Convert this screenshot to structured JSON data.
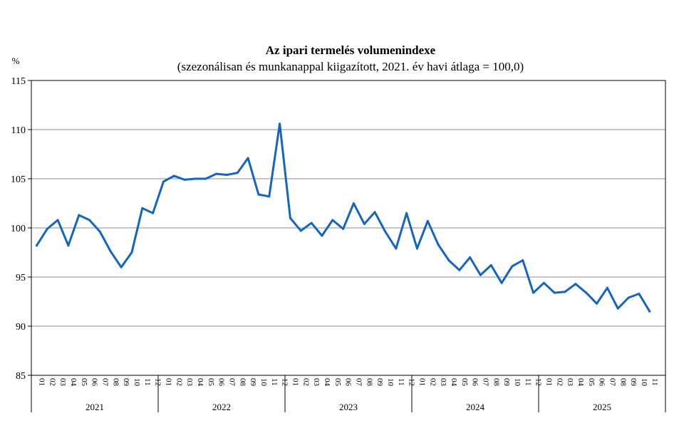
{
  "chart_data": {
    "type": "line",
    "title": "Az ipari termelés volumenindexe",
    "subtitle": "(szezonálisan és munkanappal kiigazított, 2021. év havi átlaga = 100,0)",
    "y_unit_label": "%",
    "ylim": [
      85,
      115
    ],
    "y_ticks": [
      85,
      90,
      95,
      100,
      105,
      110,
      115
    ],
    "grid": true,
    "legend": "none",
    "line_color": "#1565c0",
    "months": [
      "01",
      "02",
      "03",
      "04",
      "05",
      "06",
      "07",
      "08",
      "09",
      "10",
      "11",
      "12"
    ],
    "years": [
      "2021",
      "2022",
      "2023",
      "2024",
      "2025"
    ],
    "x": [
      "2021-01",
      "2021-02",
      "2021-03",
      "2021-04",
      "2021-05",
      "2021-06",
      "2021-07",
      "2021-08",
      "2021-09",
      "2021-10",
      "2021-11",
      "2021-12",
      "2022-01",
      "2022-02",
      "2022-03",
      "2022-04",
      "2022-05",
      "2022-06",
      "2022-07",
      "2022-08",
      "2022-09",
      "2022-10",
      "2022-11",
      "2022-12",
      "2023-01",
      "2023-02",
      "2023-03",
      "2023-04",
      "2023-05",
      "2023-06",
      "2023-07",
      "2023-08",
      "2023-09",
      "2023-10",
      "2023-11",
      "2023-12",
      "2024-01",
      "2024-02",
      "2024-03",
      "2024-04",
      "2024-05",
      "2024-06",
      "2024-07",
      "2024-08",
      "2024-09",
      "2024-10",
      "2024-11",
      "2024-12",
      "2025-01",
      "2025-02",
      "2025-03",
      "2025-04",
      "2025-05",
      "2025-06",
      "2025-07",
      "2025-08",
      "2025-09",
      "2025-10",
      "2025-11"
    ],
    "values": [
      98.2,
      99.9,
      100.8,
      98.2,
      101.3,
      100.8,
      99.6,
      97.6,
      96.0,
      97.5,
      102.0,
      101.5,
      104.7,
      105.3,
      104.9,
      105.0,
      105.0,
      105.5,
      105.4,
      105.6,
      107.1,
      103.4,
      103.2,
      110.6,
      101.0,
      99.7,
      100.5,
      99.2,
      100.8,
      99.9,
      102.5,
      100.4,
      101.6,
      99.6,
      97.9,
      101.5,
      97.9,
      100.7,
      98.3,
      96.7,
      95.7,
      97.0,
      95.2,
      96.2,
      94.4,
      96.1,
      96.7,
      93.4,
      94.4,
      93.4,
      93.5,
      94.3,
      93.4,
      92.3,
      93.9,
      91.8,
      92.9,
      93.3,
      91.5
    ]
  }
}
